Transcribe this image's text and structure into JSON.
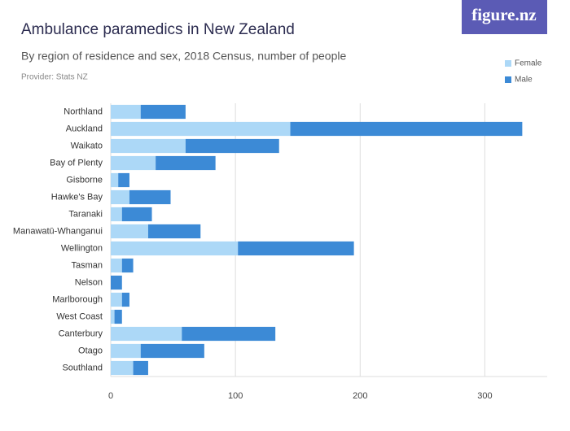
{
  "logo": "figure.nz",
  "chart_data": {
    "type": "stacked-bar-horizontal",
    "title": "Ambulance paramedics in New Zealand",
    "subtitle": "By region of residence and sex, 2018 Census, number of people",
    "provider": "Provider: Stats NZ",
    "categories": [
      "Northland",
      "Auckland",
      "Waikato",
      "Bay of Plenty",
      "Gisborne",
      "Hawke's Bay",
      "Taranaki",
      "Manawatū-Whanganui",
      "Wellington",
      "Tasman",
      "Nelson",
      "Marlborough",
      "West Coast",
      "Canterbury",
      "Otago",
      "Southland"
    ],
    "series": [
      {
        "name": "Female",
        "color": "#acd8f7",
        "values": [
          24,
          144,
          60,
          36,
          6,
          15,
          9,
          30,
          102,
          9,
          0,
          9,
          3,
          57,
          24,
          18
        ]
      },
      {
        "name": "Male",
        "color": "#3c8ad6",
        "values": [
          36,
          186,
          75,
          48,
          9,
          33,
          24,
          42,
          93,
          9,
          9,
          6,
          6,
          75,
          51,
          12
        ]
      }
    ],
    "xlim": [
      0,
      350
    ],
    "xticks": [
      0,
      100,
      200,
      300
    ],
    "grid": true,
    "legend": "top-right"
  }
}
